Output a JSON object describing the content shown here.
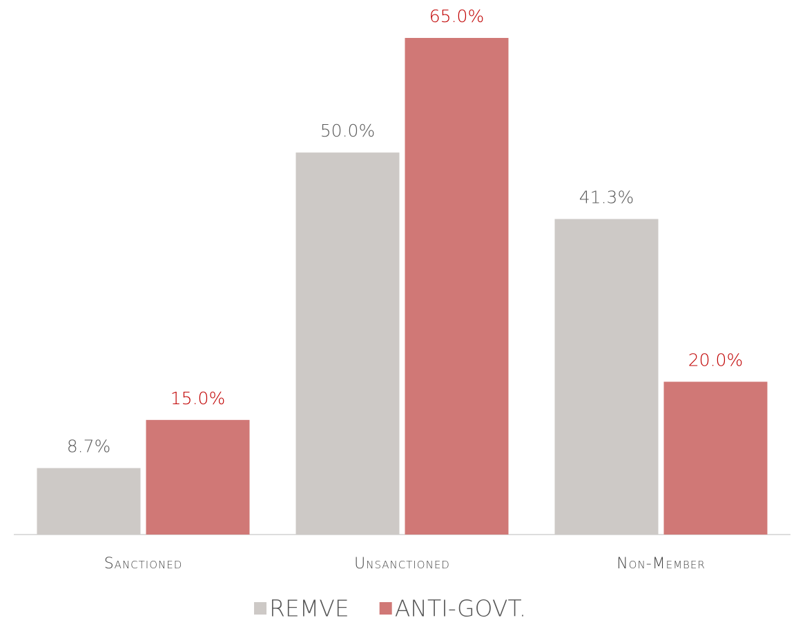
{
  "chart_data": {
    "type": "bar",
    "categories": [
      "Sanctioned",
      "Unsanctioned",
      "Non-Member"
    ],
    "series": [
      {
        "name": "REMVE",
        "color": "#cdc9c6",
        "label_color": "#595959",
        "values": [
          8.7,
          50.0,
          41.3
        ],
        "value_labels": [
          "8.7%",
          "50.0%",
          "41.3%"
        ]
      },
      {
        "name": "ANTI-GOVT.",
        "color": "#d07876",
        "label_color": "#c00000",
        "values": [
          15.0,
          65.0,
          20.0
        ],
        "value_labels": [
          "15.0%",
          "65.0%",
          "20.0%"
        ]
      }
    ],
    "ylim": [
      0,
      65
    ],
    "legend": "bottom"
  }
}
